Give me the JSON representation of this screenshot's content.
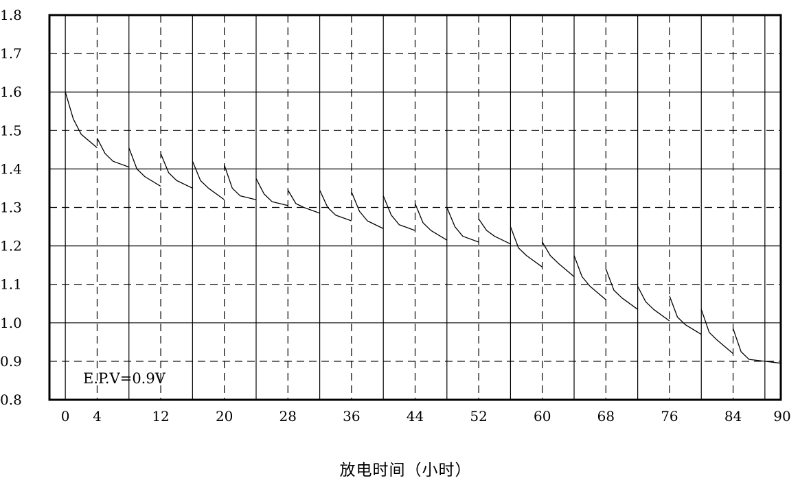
{
  "chart_data": {
    "type": "line",
    "title": "",
    "xlabel": "放电时间（小时）",
    "ylabel": "",
    "xlim": [
      -2,
      90
    ],
    "ylim": [
      0.8,
      1.8
    ],
    "y_ticks": [
      "1.8",
      "1.7",
      "1.6",
      "1.5",
      "1.4",
      "1.3",
      "1.2",
      "1.1",
      "1.0",
      "0.9",
      "0.8"
    ],
    "x_ticks": [
      "0",
      "4",
      "12",
      "20",
      "28",
      "36",
      "44",
      "52",
      "60",
      "68",
      "76",
      "84",
      "90"
    ],
    "x_tick_values": [
      0,
      4,
      12,
      20,
      28,
      36,
      44,
      52,
      60,
      68,
      76,
      84,
      90
    ],
    "grid": {
      "horizontal_solid": [
        1.6,
        1.4,
        1.2,
        1.0
      ],
      "horizontal_dashed": [
        1.7,
        1.5,
        1.3,
        1.1,
        0.9
      ],
      "vertical_solid": [
        0,
        8,
        16,
        24,
        32,
        40,
        48,
        56,
        64,
        72,
        80,
        88
      ],
      "vertical_dashed": [
        4,
        12,
        20,
        28,
        36,
        44,
        52,
        60,
        68,
        76,
        84
      ]
    },
    "annotation": "E.P.V=0.9V",
    "series": [
      {
        "segments": [
          {
            "x": [
              0,
              1,
              2,
              4
            ],
            "y": [
              1.6,
              1.53,
              1.49,
              1.455
            ]
          },
          {
            "x": [
              4,
              5,
              6,
              8
            ],
            "y": [
              1.48,
              1.44,
              1.42,
              1.405
            ]
          },
          {
            "x": [
              8,
              9,
              10,
              12
            ],
            "y": [
              1.455,
              1.4,
              1.38,
              1.355
            ]
          },
          {
            "x": [
              12,
              13,
              14,
              16
            ],
            "y": [
              1.44,
              1.39,
              1.37,
              1.35
            ]
          },
          {
            "x": [
              16,
              17,
              18,
              20
            ],
            "y": [
              1.42,
              1.37,
              1.35,
              1.32
            ]
          },
          {
            "x": [
              20,
              21,
              22,
              24
            ],
            "y": [
              1.41,
              1.35,
              1.33,
              1.32
            ]
          },
          {
            "x": [
              24,
              25,
              26,
              28
            ],
            "y": [
              1.375,
              1.335,
              1.315,
              1.305
            ]
          },
          {
            "x": [
              28,
              29,
              30,
              32
            ],
            "y": [
              1.345,
              1.31,
              1.3,
              1.285
            ]
          },
          {
            "x": [
              32,
              33,
              34,
              36
            ],
            "y": [
              1.345,
              1.3,
              1.28,
              1.265
            ]
          },
          {
            "x": [
              36,
              37,
              38,
              40
            ],
            "y": [
              1.34,
              1.29,
              1.265,
              1.245
            ]
          },
          {
            "x": [
              40,
              41,
              42,
              44
            ],
            "y": [
              1.33,
              1.28,
              1.255,
              1.24
            ]
          },
          {
            "x": [
              44,
              45,
              46,
              48
            ],
            "y": [
              1.31,
              1.26,
              1.24,
              1.215
            ]
          },
          {
            "x": [
              48,
              49,
              50,
              52
            ],
            "y": [
              1.3,
              1.25,
              1.225,
              1.21
            ]
          },
          {
            "x": [
              52,
              53,
              54,
              56
            ],
            "y": [
              1.27,
              1.24,
              1.225,
              1.205
            ]
          },
          {
            "x": [
              56,
              57,
              58,
              60
            ],
            "y": [
              1.25,
              1.195,
              1.175,
              1.145
            ]
          },
          {
            "x": [
              60,
              61,
              62,
              64
            ],
            "y": [
              1.21,
              1.175,
              1.155,
              1.12
            ]
          },
          {
            "x": [
              64,
              65,
              66,
              68
            ],
            "y": [
              1.175,
              1.12,
              1.095,
              1.06
            ]
          },
          {
            "x": [
              68,
              69,
              70,
              72
            ],
            "y": [
              1.14,
              1.085,
              1.065,
              1.035
            ]
          },
          {
            "x": [
              72,
              73,
              74,
              76
            ],
            "y": [
              1.095,
              1.055,
              1.035,
              1.005
            ]
          },
          {
            "x": [
              76,
              77,
              78,
              80
            ],
            "y": [
              1.07,
              1.015,
              0.995,
              0.97
            ]
          },
          {
            "x": [
              80,
              81,
              82,
              84
            ],
            "y": [
              1.035,
              0.975,
              0.955,
              0.92
            ]
          },
          {
            "x": [
              84,
              85,
              86,
              88,
              90
            ],
            "y": [
              0.985,
              0.925,
              0.905,
              0.9,
              0.895
            ]
          }
        ]
      }
    ]
  }
}
